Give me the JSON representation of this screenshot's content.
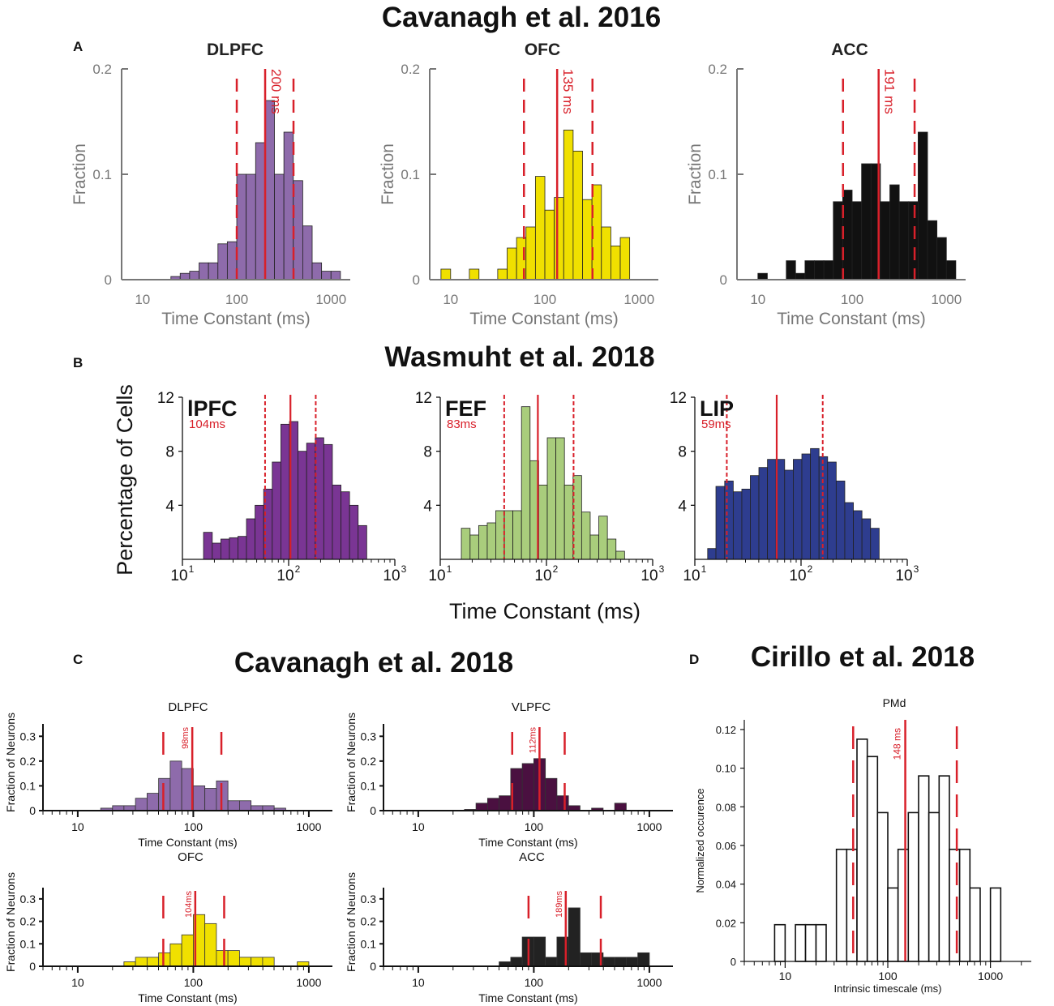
{
  "sections": {
    "A": {
      "label": "A",
      "title": "Cavanagh et al. 2016"
    },
    "B": {
      "label": "B",
      "title": "Wasmuht et al. 2018",
      "ylabel": "Percentage of Cells",
      "xlabel": "Time Constant (ms)"
    },
    "C": {
      "label": "C",
      "title": "Cavanagh et al. 2018"
    },
    "D": {
      "label": "D",
      "title": "Cirillo et al. 2018"
    }
  },
  "colors": {
    "red": "#d8202a",
    "cyan_purple": "#8e6bab",
    "yellow": "#f0e000",
    "black": "#111111",
    "b_purple": "#7a3594",
    "b_green": "#a9cd7c",
    "b_blue": "#2e3d8f",
    "c_dark": "#4a1040",
    "white": "#ffffff"
  },
  "chart_data": [
    {
      "id": "A1",
      "type": "bar",
      "title": "DLPFC",
      "xlabel": "Time Constant (ms)",
      "ylabel": "Fraction",
      "xscale": "log",
      "xlim": [
        6,
        1600
      ],
      "ylim": [
        0,
        0.2
      ],
      "xticks": [
        10,
        100,
        1000
      ],
      "xticklabels": [
        "10",
        "100",
        "1000"
      ],
      "yticks": [
        0,
        0.1,
        0.2
      ],
      "yticklabels": [
        "0",
        "0.1",
        "0.2"
      ],
      "bin_edges": [
        20.0,
        25.1,
        31.6,
        39.8,
        50.1,
        63.1,
        79.4,
        100.0,
        125.9,
        158.5,
        199.5,
        251.2,
        316.2,
        398.1,
        501.2,
        631.0,
        794.3,
        1000.0,
        1258.9
      ],
      "values": [
        0.003,
        0.006,
        0.008,
        0.016,
        0.016,
        0.034,
        0.036,
        0.1,
        0.1,
        0.13,
        0.17,
        0.1,
        0.14,
        0.094,
        0.051,
        0.016,
        0.008,
        0.008
      ],
      "median": 200,
      "median_label": "200 ms",
      "iqr": [
        100,
        400
      ]
    },
    {
      "id": "A2",
      "type": "bar",
      "title": "OFC",
      "xlabel": "Time Constant (ms)",
      "ylabel": "Fraction",
      "xscale": "log",
      "xlim": [
        6,
        1600
      ],
      "ylim": [
        0,
        0.2
      ],
      "xticks": [
        10,
        100,
        1000
      ],
      "xticklabels": [
        "10",
        "100",
        "1000"
      ],
      "yticks": [
        0,
        0.1,
        0.2
      ],
      "yticklabels": [
        "0",
        "0.1",
        "0.2"
      ],
      "bin_edges": [
        7.9,
        10.0,
        12.6,
        15.8,
        20.0,
        25.1,
        31.6,
        39.8,
        50.1,
        63.1,
        79.4,
        100.0,
        125.9,
        158.5,
        199.5,
        251.2,
        316.2,
        398.1,
        501.2,
        631.0,
        794.3,
        1000.0
      ],
      "values": [
        0.01,
        0.0,
        0.0,
        0.01,
        0.0,
        0.0,
        0.01,
        0.03,
        0.04,
        0.05,
        0.098,
        0.066,
        0.078,
        0.142,
        0.122,
        0.076,
        0.09,
        0.05,
        0.032,
        0.04,
        0.0,
        0.02
      ],
      "median": 135,
      "median_label": "135 ms",
      "iqr": [
        60,
        320
      ]
    },
    {
      "id": "A3",
      "type": "bar",
      "title": "ACC",
      "xlabel": "Time Constant (ms)",
      "ylabel": "Fraction",
      "xscale": "log",
      "xlim": [
        6,
        1600
      ],
      "ylim": [
        0,
        0.2
      ],
      "xticks": [
        10,
        100,
        1000
      ],
      "xticklabels": [
        "10",
        "100",
        "1000"
      ],
      "yticks": [
        0,
        0.1,
        0.2
      ],
      "yticklabels": [
        "0",
        "0.1",
        "0.2"
      ],
      "bin_edges": [
        10.0,
        12.6,
        15.8,
        20.0,
        25.1,
        31.6,
        39.8,
        50.1,
        63.1,
        79.4,
        100.0,
        125.9,
        158.5,
        199.5,
        251.2,
        316.2,
        398.1,
        501.2,
        631.0,
        794.3,
        1000.0,
        1258.9
      ],
      "values": [
        0.006,
        0.0,
        0.0,
        0.018,
        0.006,
        0.018,
        0.018,
        0.018,
        0.074,
        0.085,
        0.074,
        0.11,
        0.11,
        0.074,
        0.09,
        0.074,
        0.074,
        0.14,
        0.056,
        0.04,
        0.018,
        0.006
      ],
      "median": 191,
      "median_label": "191 ms",
      "iqr": [
        80,
        460
      ]
    },
    {
      "id": "B1",
      "type": "bar",
      "title": "lPFC",
      "median_label": "104ms",
      "xlabel": "Time Constant (ms)",
      "ylabel": "Percentage of Cells",
      "xscale": "log",
      "xlim": [
        10,
        1000
      ],
      "ylim": [
        0,
        12
      ],
      "xticks": [
        10,
        100,
        1000
      ],
      "xticklabels": [
        "10",
        "10",
        "10"
      ],
      "xtick_exponents": [
        "1",
        "2",
        "3"
      ],
      "yticks": [
        4,
        8,
        12
      ],
      "yticklabels": [
        "4",
        "8",
        "12"
      ],
      "bin_edges": [
        15.8,
        19.1,
        23.0,
        27.7,
        33.3,
        40.1,
        48.3,
        58.2,
        70.1,
        84.5,
        101.8,
        122.6,
        147.7,
        177.9,
        214.3,
        258.2,
        311.0,
        374.7,
        451.4,
        543.8
      ],
      "values": [
        2.0,
        1.2,
        1.5,
        1.6,
        1.7,
        3.0,
        4.0,
        5.2,
        7.2,
        10.0,
        10.2,
        8.0,
        8.6,
        9.0,
        8.5,
        5.5,
        5.0,
        4.0,
        2.5
      ],
      "median": 104,
      "iqr": [
        60,
        180
      ]
    },
    {
      "id": "B2",
      "type": "bar",
      "title": "FEF",
      "median_label": "83ms",
      "xlabel": "Time Constant (ms)",
      "ylabel": "Percentage of Cells",
      "xscale": "log",
      "xlim": [
        10,
        1000
      ],
      "ylim": [
        0,
        12
      ],
      "xticks": [
        10,
        100,
        1000
      ],
      "xticklabels": [
        "10",
        "10",
        "10"
      ],
      "xtick_exponents": [
        "1",
        "2",
        "3"
      ],
      "yticks": [
        4,
        8,
        12
      ],
      "yticklabels": [
        "4",
        "8",
        "12"
      ],
      "bin_edges": [
        15.8,
        19.1,
        23.0,
        27.7,
        33.3,
        40.1,
        48.3,
        58.2,
        70.1,
        84.5,
        101.8,
        122.6,
        147.7,
        177.9,
        214.3,
        258.2,
        311.0,
        374.7,
        451.4,
        543.8
      ],
      "values": [
        2.3,
        1.8,
        2.5,
        2.7,
        3.6,
        3.6,
        3.6,
        11.3,
        7.3,
        5.5,
        9.0,
        9.0,
        5.5,
        6.2,
        3.5,
        1.8,
        3.2,
        1.5,
        0.6
      ],
      "median": 83,
      "iqr": [
        40,
        180
      ]
    },
    {
      "id": "B3",
      "type": "bar",
      "title": "LIP",
      "median_label": "59ms",
      "xlabel": "Time Constant (ms)",
      "ylabel": "Percentage of Cells",
      "xscale": "log",
      "xlim": [
        10,
        1000
      ],
      "ylim": [
        0,
        12
      ],
      "xticks": [
        10,
        100,
        1000
      ],
      "xticklabels": [
        "10",
        "10",
        "10"
      ],
      "xtick_exponents": [
        "1",
        "2",
        "3"
      ],
      "yticks": [
        4,
        8,
        12
      ],
      "yticklabels": [
        "4",
        "8",
        "12"
      ],
      "bin_edges": [
        13.2,
        15.8,
        19.1,
        23.0,
        27.7,
        33.3,
        40.1,
        48.3,
        58.2,
        70.1,
        84.5,
        101.8,
        122.6,
        147.7,
        177.9,
        214.3,
        258.2,
        311.0,
        374.7,
        451.4,
        543.8
      ],
      "values": [
        0.8,
        5.4,
        5.8,
        5.0,
        5.2,
        6.2,
        6.8,
        7.4,
        7.4,
        6.6,
        7.4,
        7.8,
        8.2,
        7.6,
        7.2,
        5.8,
        4.2,
        3.6,
        3.0,
        2.3
      ],
      "median": 59,
      "iqr": [
        20,
        160
      ]
    },
    {
      "id": "C1",
      "type": "bar",
      "title": "DLPFC",
      "xlabel": "Time Constant (ms)",
      "ylabel": "Fraction of Neurons",
      "xscale": "log",
      "xlim": [
        5,
        1600
      ],
      "ylim": [
        0,
        0.35
      ],
      "xticks": [
        10,
        100,
        1000
      ],
      "xticklabels": [
        "10",
        "100",
        "1000"
      ],
      "yticks": [
        0,
        0.1,
        0.2,
        0.3
      ],
      "yticklabels": [
        "0",
        "0.1",
        "0.2",
        "0.3"
      ],
      "bin_edges": [
        15.8,
        20.0,
        25.1,
        31.6,
        39.8,
        50.1,
        63.1,
        79.4,
        100.0,
        125.9,
        158.5,
        199.5,
        251.2,
        316.2,
        398.1,
        501.2,
        631.0
      ],
      "values": [
        0.01,
        0.02,
        0.02,
        0.05,
        0.07,
        0.13,
        0.2,
        0.17,
        0.1,
        0.09,
        0.12,
        0.04,
        0.04,
        0.02,
        0.02,
        0.01
      ],
      "median": 98,
      "median_label": "98ms",
      "iqr": [
        55,
        175
      ]
    },
    {
      "id": "C2",
      "type": "bar",
      "title": "VLPFC",
      "xlabel": "Time Constant (ms)",
      "ylabel": "Fraction of Neurons",
      "xscale": "log",
      "xlim": [
        5,
        1600
      ],
      "ylim": [
        0,
        0.35
      ],
      "xticks": [
        10,
        100,
        1000
      ],
      "xticklabels": [
        "10",
        "100",
        "1000"
      ],
      "yticks": [
        0,
        0.1,
        0.2,
        0.3
      ],
      "yticklabels": [
        "0",
        "0.1",
        "0.2",
        "0.3"
      ],
      "bin_edges": [
        25.1,
        31.6,
        39.8,
        50.1,
        63.1,
        79.4,
        100.0,
        125.9,
        158.5,
        199.5,
        251.2,
        316.2,
        398.1,
        501.2,
        631.0
      ],
      "values": [
        0.005,
        0.03,
        0.05,
        0.06,
        0.17,
        0.19,
        0.21,
        0.13,
        0.06,
        0.02,
        0.0,
        0.01,
        0.0,
        0.03
      ],
      "median": 112,
      "median_label": "112ms",
      "iqr": [
        65,
        185
      ]
    },
    {
      "id": "C3",
      "type": "bar",
      "title": "OFC",
      "xlabel": "Time Constant (ms)",
      "ylabel": "Fraction of Neurons",
      "xscale": "log",
      "xlim": [
        5,
        1600
      ],
      "ylim": [
        0,
        0.35
      ],
      "xticks": [
        10,
        100,
        1000
      ],
      "xticklabels": [
        "10",
        "100",
        "1000"
      ],
      "yticks": [
        0,
        0.1,
        0.2,
        0.3
      ],
      "yticklabels": [
        "0",
        "0.1",
        "0.2",
        "0.3"
      ],
      "bin_edges": [
        25.1,
        31.6,
        39.8,
        50.1,
        63.1,
        79.4,
        100.0,
        125.9,
        158.5,
        199.5,
        251.2,
        316.2,
        398.1,
        501.2,
        631.0,
        794.3,
        1000.0
      ],
      "values": [
        0.02,
        0.04,
        0.04,
        0.06,
        0.1,
        0.14,
        0.23,
        0.19,
        0.07,
        0.07,
        0.04,
        0.04,
        0.04,
        0.0,
        0.0,
        0.02
      ],
      "median": 104,
      "median_label": "104ms",
      "iqr": [
        55,
        185
      ]
    },
    {
      "id": "C4",
      "type": "bar",
      "title": "ACC",
      "xlabel": "Time Constant (ms)",
      "ylabel": "Fraction of Neurons",
      "xscale": "log",
      "xlim": [
        5,
        1600
      ],
      "ylim": [
        0,
        0.35
      ],
      "xticks": [
        10,
        100,
        1000
      ],
      "xticklabels": [
        "10",
        "100",
        "1000"
      ],
      "yticks": [
        0,
        0.1,
        0.2,
        0.3
      ],
      "yticklabels": [
        "0",
        "0.1",
        "0.2",
        "0.3"
      ],
      "bin_edges": [
        50.1,
        63.1,
        79.4,
        100.0,
        125.9,
        158.5,
        199.5,
        251.2,
        316.2,
        398.1,
        501.2,
        631.0,
        794.3,
        1000.0
      ],
      "values": [
        0.02,
        0.04,
        0.13,
        0.13,
        0.04,
        0.13,
        0.26,
        0.06,
        0.06,
        0.04,
        0.04,
        0.04,
        0.06
      ],
      "median": 189,
      "median_label": "189ms",
      "iqr": [
        90,
        380
      ]
    },
    {
      "id": "D",
      "type": "bar",
      "title": "PMd",
      "xlabel": "Intrinsic timescale (ms)",
      "ylabel": "Normalized occurence",
      "xscale": "log",
      "xlim": [
        4,
        2500
      ],
      "ylim": [
        0,
        0.125
      ],
      "xticks": [
        10,
        100,
        1000
      ],
      "xticklabels": [
        "10",
        "100",
        "1000"
      ],
      "yticks": [
        0,
        0.02,
        0.04,
        0.06,
        0.08,
        0.1,
        0.12
      ],
      "yticklabels": [
        "0",
        "0.02",
        "0.04",
        "0.06",
        "0.08",
        "0.10",
        "0.12"
      ],
      "bin_edges": [
        7.9,
        10.0,
        12.6,
        15.8,
        20.0,
        25.1,
        31.6,
        39.8,
        50.1,
        63.1,
        79.4,
        100.0,
        125.9,
        158.5,
        199.5,
        251.2,
        316.2,
        398.1,
        501.2,
        631.0,
        794.3,
        1000.0,
        1258.9
      ],
      "values": [
        0.019,
        0.0,
        0.019,
        0.019,
        0.019,
        0.0,
        0.058,
        0.058,
        0.115,
        0.106,
        0.077,
        0.038,
        0.058,
        0.077,
        0.096,
        0.077,
        0.096,
        0.058,
        0.058,
        0.038,
        0.0,
        0.038
      ],
      "median": 148,
      "median_label": "148 ms",
      "iqr": [
        46,
        470
      ]
    }
  ]
}
